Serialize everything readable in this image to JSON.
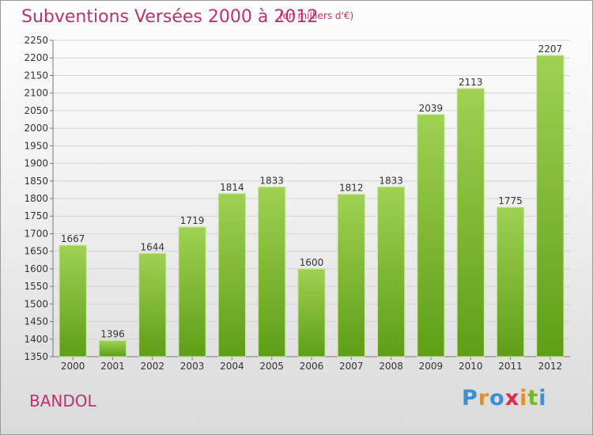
{
  "chart_data": {
    "type": "bar",
    "title": "Subventions Versées 2000 à 2012",
    "subtitle": "(en milliers d'€)",
    "categories": [
      "2000",
      "2001",
      "2002",
      "2003",
      "2004",
      "2005",
      "2006",
      "2007",
      "2008",
      "2009",
      "2010",
      "2011",
      "2012"
    ],
    "values": [
      1667,
      1396,
      1644,
      1719,
      1814,
      1833,
      1600,
      1812,
      1833,
      2039,
      2113,
      1775,
      2207
    ],
    "ylim": [
      1350,
      2250
    ],
    "yticks": [
      1350,
      1400,
      1450,
      1500,
      1550,
      1600,
      1650,
      1700,
      1750,
      1800,
      1850,
      1900,
      1950,
      2000,
      2050,
      2100,
      2150,
      2200,
      2250
    ],
    "grid": true,
    "bar_color_top": "#9fd152",
    "bar_color_bottom": "#5f9e17"
  },
  "footer": {
    "place": "BANDOL",
    "logo": [
      "P",
      "r",
      "o",
      "x",
      "i",
      "t",
      "i"
    ],
    "logo_colors": [
      "#3a8fd6",
      "#f08a1c",
      "#3a8fd6",
      "#d62b4a",
      "#f08a1c",
      "#7bb51f",
      "#3a8fd6"
    ]
  }
}
